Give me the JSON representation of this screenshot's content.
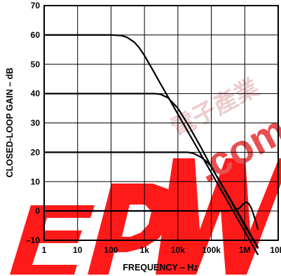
{
  "chart_data": {
    "type": "line",
    "title": "",
    "xlabel": "FREQUENCY – Hz",
    "ylabel": "CLOSED-LOOP GAIN – dB",
    "x_scale": "log",
    "xlim": [
      1,
      10000000
    ],
    "ylim": [
      -10,
      70
    ],
    "grid": true,
    "x_ticks": [
      {
        "value": 1,
        "label": "1"
      },
      {
        "value": 10,
        "label": "10"
      },
      {
        "value": 100,
        "label": "100"
      },
      {
        "value": 1000,
        "label": "1k"
      },
      {
        "value": 10000,
        "label": "10k"
      },
      {
        "value": 100000,
        "label": "100k"
      },
      {
        "value": 1000000,
        "label": "1M"
      },
      {
        "value": 10000000,
        "label": "10M"
      }
    ],
    "y_ticks": [
      {
        "value": -10,
        "label": "–10"
      },
      {
        "value": 0,
        "label": "0"
      },
      {
        "value": 10,
        "label": "10"
      },
      {
        "value": 20,
        "label": "20"
      },
      {
        "value": 30,
        "label": "30"
      },
      {
        "value": 40,
        "label": "40"
      },
      {
        "value": 50,
        "label": "50"
      },
      {
        "value": 60,
        "label": "60"
      },
      {
        "value": 70,
        "label": "70"
      }
    ],
    "series": [
      {
        "values": [
          [
            1,
            60
          ],
          [
            100,
            60
          ],
          [
            200,
            59.8
          ],
          [
            300,
            59.2
          ],
          [
            500,
            57.5
          ],
          [
            700,
            55.6
          ],
          [
            1000,
            53
          ],
          [
            2000,
            47
          ],
          [
            3000,
            43.4
          ],
          [
            5000,
            39
          ],
          [
            10000,
            33
          ],
          [
            100000,
            13
          ],
          [
            300000,
            3.5
          ],
          [
            1000000,
            -7
          ],
          [
            2500000,
            -15
          ]
        ]
      },
      {
        "values": [
          [
            1,
            40
          ],
          [
            2000,
            40
          ],
          [
            3000,
            39.8
          ],
          [
            5000,
            38.6
          ],
          [
            8000,
            36.2
          ],
          [
            10000,
            35
          ],
          [
            20000,
            29.5
          ],
          [
            50000,
            21.5
          ],
          [
            100000,
            15
          ],
          [
            200000,
            9
          ],
          [
            500000,
            1
          ],
          [
            1000000,
            -5.2
          ],
          [
            2500000,
            -12.8
          ]
        ]
      },
      {
        "values": [
          [
            1,
            20
          ],
          [
            20000,
            20
          ],
          [
            30000,
            19.6
          ],
          [
            50000,
            18.3
          ],
          [
            80000,
            16.4
          ],
          [
            100000,
            15
          ],
          [
            200000,
            9.2
          ],
          [
            500000,
            1.5
          ],
          [
            1000000,
            -4.5
          ],
          [
            2500000,
            -12.5
          ]
        ]
      },
      {
        "values": [
          [
            1,
            0
          ],
          [
            300000,
            0
          ],
          [
            500000,
            0.2
          ],
          [
            700000,
            1
          ],
          [
            900000,
            2.4
          ],
          [
            1100000,
            3
          ],
          [
            1300000,
            2.6
          ],
          [
            1600000,
            0.8
          ],
          [
            2000000,
            -2.5
          ],
          [
            2500000,
            -6.5
          ]
        ]
      }
    ],
    "watermark": {
      "text_cn": "電子產業",
      "text_com": ".com",
      "colors": {
        "cn": "#e8c0c0",
        "com": "#e85050",
        "logo": "#ff1a1a"
      }
    }
  }
}
